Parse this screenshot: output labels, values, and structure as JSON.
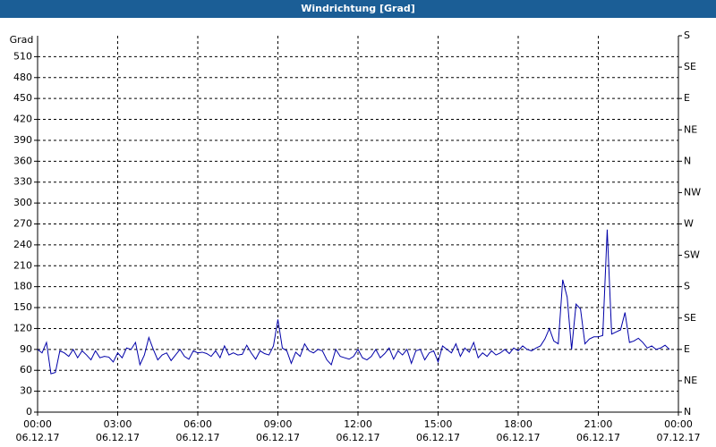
{
  "chart_data": {
    "type": "line",
    "title": "Windrichtung [Grad]",
    "ylabel": "Grad",
    "x": [
      0,
      10,
      20,
      30,
      40,
      50,
      60,
      70,
      80,
      90,
      100,
      110,
      120,
      130,
      140,
      150,
      160,
      170,
      180,
      190,
      200,
      210,
      220,
      230,
      240,
      250,
      260,
      270,
      280,
      290,
      300,
      310,
      320,
      330,
      340,
      350,
      360,
      370,
      380,
      390,
      400,
      410,
      420,
      430,
      440,
      450,
      460,
      470,
      480,
      490,
      500,
      510,
      520,
      530,
      540,
      550,
      560,
      570,
      580,
      590,
      600,
      610,
      620,
      630,
      640,
      650,
      660,
      670,
      680,
      690,
      700,
      710,
      720,
      730,
      740,
      750,
      760,
      770,
      780,
      790,
      800,
      810,
      820,
      830,
      840,
      850,
      860,
      870,
      880,
      890,
      900,
      910,
      920,
      930,
      940,
      950,
      960,
      970,
      980,
      990,
      1000,
      1010,
      1020,
      1030,
      1040,
      1050,
      1060,
      1070,
      1080,
      1090,
      1100,
      1110,
      1120,
      1130,
      1140,
      1150,
      1160,
      1170,
      1180,
      1190,
      1200,
      1210,
      1220,
      1230,
      1240,
      1250,
      1260,
      1270,
      1280,
      1290,
      1300,
      1310,
      1320,
      1330,
      1340,
      1350,
      1360,
      1370,
      1380,
      1390,
      1400,
      1410,
      1420
    ],
    "series": [
      {
        "color": "#0000a8",
        "values": [
          90,
          85,
          100,
          55,
          57,
          88,
          85,
          80,
          90,
          78,
          88,
          82,
          75,
          88,
          78,
          80,
          79,
          72,
          85,
          78,
          92,
          90,
          100,
          68,
          82,
          107,
          90,
          75,
          82,
          85,
          74,
          82,
          90,
          80,
          76,
          88,
          85,
          86,
          84,
          80,
          88,
          78,
          95,
          82,
          85,
          82,
          83,
          96,
          85,
          76,
          88,
          84,
          82,
          95,
          133,
          92,
          88,
          70,
          86,
          80,
          98,
          88,
          85,
          90,
          88,
          75,
          68,
          90,
          80,
          78,
          76,
          80,
          90,
          78,
          75,
          80,
          90,
          78,
          84,
          92,
          76,
          88,
          82,
          90,
          70,
          88,
          90,
          75,
          85,
          88,
          72,
          95,
          90,
          85,
          98,
          80,
          92,
          86,
          100,
          78,
          85,
          80,
          88,
          82,
          85,
          90,
          84,
          92,
          88,
          95,
          90,
          88,
          92,
          95,
          105,
          120,
          102,
          98,
          190,
          165,
          90,
          155,
          148,
          98,
          105,
          108,
          108,
          110,
          262,
          112,
          115,
          118,
          143,
          100,
          102,
          106,
          100,
          92,
          95,
          90,
          92,
          96,
          90
        ]
      }
    ],
    "xlim": [
      0,
      1440
    ],
    "xticks": [
      {
        "value": 0,
        "label": "00:00"
      },
      {
        "value": 180,
        "label": "03:00"
      },
      {
        "value": 360,
        "label": "06:00"
      },
      {
        "value": 540,
        "label": "09:00"
      },
      {
        "value": 720,
        "label": "12:00"
      },
      {
        "value": 900,
        "label": "15:00"
      },
      {
        "value": 1080,
        "label": "18:00"
      },
      {
        "value": 1260,
        "label": "21:00"
      },
      {
        "value": 1440,
        "label": "00:00"
      }
    ],
    "xtick_dates": [
      "06.12.17",
      "06.12.17",
      "06.12.17",
      "06.12.17",
      "06.12.17",
      "06.12.17",
      "06.12.17",
      "06.12.17",
      "07.12.17"
    ],
    "ylim": [
      0,
      540
    ],
    "yticks": [
      0,
      30,
      60,
      90,
      120,
      150,
      180,
      210,
      240,
      270,
      300,
      330,
      360,
      390,
      420,
      450,
      480,
      510
    ],
    "y2lim": [
      0,
      540
    ],
    "y2ticks": [
      {
        "value": 0,
        "label": "N"
      },
      {
        "value": 45,
        "label": "NE"
      },
      {
        "value": 90,
        "label": "E"
      },
      {
        "value": 135,
        "label": "SE"
      },
      {
        "value": 180,
        "label": "S"
      },
      {
        "value": 225,
        "label": "SW"
      },
      {
        "value": 270,
        "label": "W"
      },
      {
        "value": 315,
        "label": "NW"
      },
      {
        "value": 360,
        "label": "N"
      },
      {
        "value": 405,
        "label": "NE"
      },
      {
        "value": 450,
        "label": "E"
      },
      {
        "value": 495,
        "label": "SE"
      },
      {
        "value": 540,
        "label": "S"
      }
    ],
    "grid": true
  }
}
